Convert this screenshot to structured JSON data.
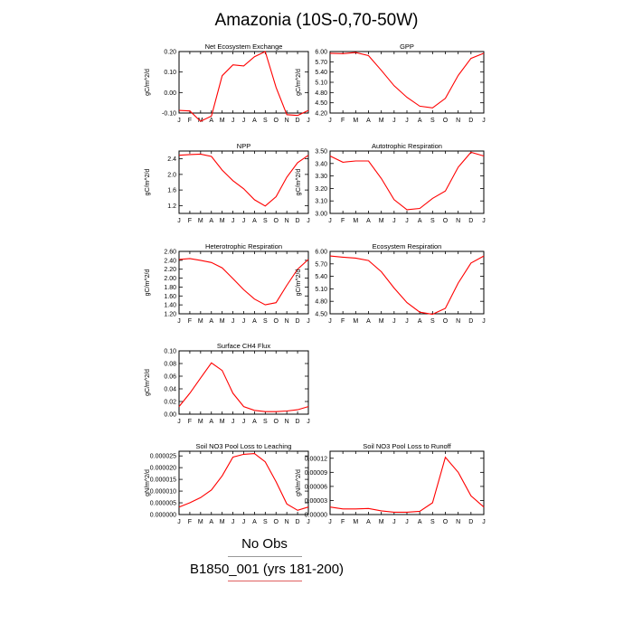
{
  "figure": {
    "title": "Amazonia (10S-0,70-50W)",
    "legend": [
      {
        "label": "No Obs",
        "color": "#999999"
      },
      {
        "label": "B1850_001 (yrs 181-200)",
        "color": "#ff0000"
      }
    ]
  },
  "chart_data": [
    {
      "type": "line",
      "title": "Net Ecosystem Exchange",
      "ylabel": "gC/m^2/d",
      "x": [
        "J",
        "F",
        "M",
        "A",
        "M",
        "J",
        "J",
        "A",
        "S",
        "O",
        "N",
        "D",
        "J"
      ],
      "yticks": [
        "0.20",
        "0.10",
        "0.00",
        "-0.10"
      ],
      "ylim": [
        -0.1,
        0.2
      ],
      "series": [
        {
          "color": "#ff0000",
          "values": [
            -0.087,
            -0.09,
            -0.14,
            -0.115,
            0.082,
            0.135,
            0.13,
            0.175,
            0.2,
            0.025,
            -0.108,
            -0.112,
            -0.087
          ]
        }
      ]
    },
    {
      "type": "line",
      "title": "GPP",
      "ylabel": "gC/m^2/d",
      "x": [
        "J",
        "F",
        "M",
        "A",
        "M",
        "J",
        "J",
        "A",
        "S",
        "O",
        "N",
        "D",
        "J"
      ],
      "yticks": [
        "6.00",
        "5.70",
        "5.40",
        "5.10",
        "4.80",
        "4.50",
        "4.20"
      ],
      "ylim": [
        4.2,
        6.0
      ],
      "series": [
        {
          "color": "#ff0000",
          "values": [
            5.95,
            5.94,
            5.97,
            5.88,
            5.45,
            5.0,
            4.66,
            4.4,
            4.35,
            4.63,
            5.3,
            5.8,
            5.95
          ]
        }
      ]
    },
    {
      "type": "line",
      "title": "NPP",
      "ylabel": "gC/m^2/d",
      "x": [
        "J",
        "F",
        "M",
        "A",
        "M",
        "J",
        "J",
        "A",
        "S",
        "O",
        "N",
        "D",
        "J"
      ],
      "yticks": [
        "2.4",
        "2.0",
        "1.6",
        "1.2"
      ],
      "ylim": [
        1.0,
        2.6
      ],
      "series": [
        {
          "color": "#ff0000",
          "values": [
            2.49,
            2.51,
            2.52,
            2.46,
            2.11,
            1.84,
            1.63,
            1.35,
            1.19,
            1.43,
            1.93,
            2.3,
            2.49
          ]
        }
      ]
    },
    {
      "type": "line",
      "title": "Autotrophic Respiration",
      "ylabel": "gC/m^2/d",
      "x": [
        "J",
        "F",
        "M",
        "A",
        "M",
        "J",
        "J",
        "A",
        "S",
        "O",
        "N",
        "D",
        "J"
      ],
      "yticks": [
        "3.50",
        "3.40",
        "3.30",
        "3.20",
        "3.10",
        "3.00"
      ],
      "ylim": [
        3.0,
        3.5
      ],
      "series": [
        {
          "color": "#ff0000",
          "values": [
            3.46,
            3.41,
            3.42,
            3.42,
            3.28,
            3.11,
            3.03,
            3.04,
            3.12,
            3.18,
            3.37,
            3.49,
            3.46
          ]
        }
      ]
    },
    {
      "type": "line",
      "title": "Heterotrophic Respiration",
      "ylabel": "gC/m^2/d",
      "x": [
        "J",
        "F",
        "M",
        "A",
        "M",
        "J",
        "J",
        "A",
        "S",
        "O",
        "N",
        "D",
        "J"
      ],
      "yticks": [
        "2.60",
        "2.40",
        "2.20",
        "2.00",
        "1.80",
        "1.60",
        "1.40",
        "1.20"
      ],
      "ylim": [
        1.2,
        2.6
      ],
      "series": [
        {
          "color": "#ff0000",
          "values": [
            2.42,
            2.44,
            2.4,
            2.35,
            2.23,
            1.99,
            1.74,
            1.53,
            1.4,
            1.45,
            1.84,
            2.2,
            2.42
          ]
        }
      ]
    },
    {
      "type": "line",
      "title": "Ecosystem Respiration",
      "ylabel": "gC/m^2/d",
      "x": [
        "J",
        "F",
        "M",
        "A",
        "M",
        "J",
        "J",
        "A",
        "S",
        "O",
        "N",
        "D",
        "J"
      ],
      "yticks": [
        "6.00",
        "5.70",
        "5.40",
        "5.10",
        "4.80",
        "4.50"
      ],
      "ylim": [
        4.5,
        6.0
      ],
      "series": [
        {
          "color": "#ff0000",
          "values": [
            5.89,
            5.86,
            5.84,
            5.78,
            5.51,
            5.12,
            4.77,
            4.54,
            4.49,
            4.63,
            5.24,
            5.72,
            5.89
          ]
        }
      ]
    },
    {
      "type": "line",
      "title": "Surface CH4 Flux",
      "ylabel": "gC/m^2/d",
      "x": [
        "J",
        "F",
        "M",
        "A",
        "M",
        "J",
        "J",
        "A",
        "S",
        "O",
        "N",
        "D",
        "J"
      ],
      "yticks": [
        "0.10",
        "0.08",
        "0.06",
        "0.04",
        "0.02",
        "0.00"
      ],
      "ylim": [
        0.0,
        0.1
      ],
      "series": [
        {
          "color": "#ff0000",
          "values": [
            0.012,
            0.033,
            0.057,
            0.081,
            0.069,
            0.033,
            0.012,
            0.006,
            0.004,
            0.004,
            0.005,
            0.007,
            0.012
          ]
        }
      ]
    },
    {
      "type": "line",
      "title": "Soil NO3 Pool Loss to Leaching",
      "ylabel": "gN/m^2/d",
      "x": [
        "J",
        "F",
        "M",
        "A",
        "M",
        "J",
        "J",
        "A",
        "S",
        "O",
        "N",
        "D",
        "J"
      ],
      "yticks": [
        "0.000025",
        "0.000020",
        "0.000015",
        "0.000010",
        "0.000005",
        "0.000000"
      ],
      "ylim": [
        0.0,
        2.7e-05
      ],
      "series": [
        {
          "color": "#ff0000",
          "values": [
            3.2e-06,
            5e-06,
            7.2e-06,
            1.05e-05,
            1.65e-05,
            2.45e-05,
            2.57e-05,
            2.6e-05,
            2.25e-05,
            1.4e-05,
            4.5e-06,
            1.8e-06,
            3.2e-06
          ]
        }
      ]
    },
    {
      "type": "line",
      "title": "Soil NO3 Pool Loss to Runoff",
      "ylabel": "gN/m^2/d",
      "x": [
        "J",
        "F",
        "M",
        "A",
        "M",
        "J",
        "J",
        "A",
        "S",
        "O",
        "N",
        "D",
        "J"
      ],
      "yticks": [
        "0.00012",
        "0.00009",
        "0.00006",
        "0.00003",
        "0.00000"
      ],
      "ylim": [
        0.0,
        0.000135
      ],
      "series": [
        {
          "color": "#ff0000",
          "values": [
            1.6e-05,
            1.2e-05,
            1.2e-05,
            1.3e-05,
            8e-06,
            5e-06,
            5e-06,
            7e-06,
            2.5e-05,
            0.000122,
            9e-05,
            4e-05,
            1.6e-05
          ]
        }
      ]
    }
  ]
}
